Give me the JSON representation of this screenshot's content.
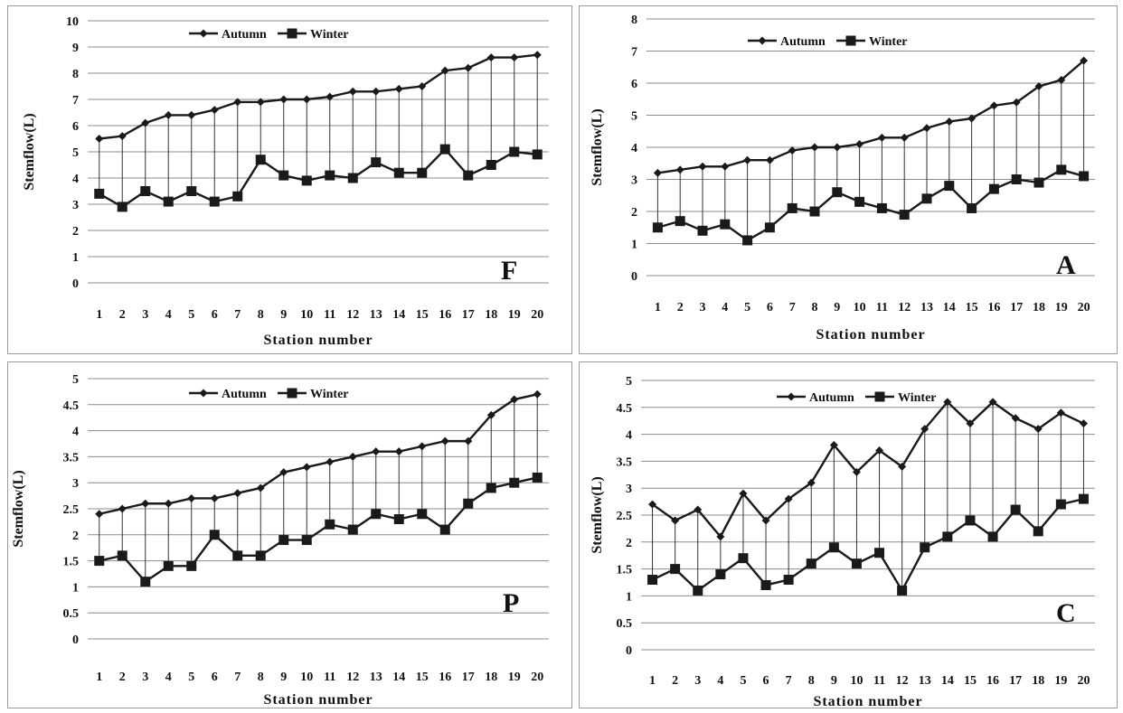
{
  "chart_data": [
    {
      "type": "line",
      "panel_letter": "F",
      "xlabel": "Station number",
      "ylabel": "Stemflow(L)",
      "categories": [
        1,
        2,
        3,
        4,
        5,
        6,
        7,
        8,
        9,
        10,
        11,
        12,
        13,
        14,
        15,
        16,
        17,
        18,
        19,
        20
      ],
      "ylim": [
        0,
        10
      ],
      "yticks": [
        0,
        1,
        2,
        3,
        4,
        5,
        6,
        7,
        8,
        9,
        10
      ],
      "series": [
        {
          "name": "Autumn",
          "marker": "diamond",
          "values": [
            5.5,
            5.6,
            6.1,
            6.4,
            6.4,
            6.6,
            6.9,
            6.9,
            7.0,
            7.0,
            7.1,
            7.3,
            7.3,
            7.4,
            7.5,
            8.1,
            8.2,
            8.6,
            8.6,
            8.7
          ]
        },
        {
          "name": "Winter",
          "marker": "square",
          "values": [
            3.4,
            2.9,
            3.5,
            3.1,
            3.5,
            3.1,
            3.3,
            4.7,
            4.1,
            3.9,
            4.1,
            4.0,
            4.6,
            4.2,
            4.2,
            5.1,
            4.1,
            4.5,
            5.0,
            4.9
          ]
        }
      ],
      "grid": true,
      "legend": "top-center"
    },
    {
      "type": "line",
      "panel_letter": "A",
      "xlabel": "Station number",
      "ylabel": "Stemflow(L)",
      "categories": [
        1,
        2,
        3,
        4,
        5,
        6,
        7,
        8,
        9,
        10,
        11,
        12,
        13,
        14,
        15,
        16,
        17,
        18,
        19,
        20
      ],
      "ylim": [
        0,
        8
      ],
      "yticks": [
        0,
        1,
        2,
        3,
        4,
        5,
        6,
        7,
        8
      ],
      "series": [
        {
          "name": "Autumn",
          "marker": "diamond",
          "values": [
            3.2,
            3.3,
            3.4,
            3.4,
            3.6,
            3.6,
            3.9,
            4.0,
            4.0,
            4.1,
            4.3,
            4.3,
            4.6,
            4.8,
            4.9,
            5.3,
            5.4,
            5.9,
            6.1,
            6.7
          ]
        },
        {
          "name": "Winter",
          "marker": "square",
          "values": [
            1.5,
            1.7,
            1.4,
            1.6,
            1.1,
            1.5,
            2.1,
            2.0,
            2.6,
            2.3,
            2.1,
            1.9,
            2.4,
            2.8,
            2.1,
            2.7,
            3.0,
            2.9,
            3.3,
            3.1
          ]
        }
      ],
      "grid": true,
      "legend": "top-center"
    },
    {
      "type": "line",
      "panel_letter": "P",
      "xlabel": "Station number",
      "ylabel": "Stemflow(L)",
      "categories": [
        1,
        2,
        3,
        4,
        5,
        6,
        7,
        8,
        9,
        10,
        11,
        12,
        13,
        14,
        15,
        16,
        17,
        18,
        19,
        20
      ],
      "ylim": [
        0,
        5
      ],
      "yticks": [
        0,
        0.5,
        1,
        1.5,
        2,
        2.5,
        3,
        3.5,
        4,
        4.5,
        5
      ],
      "series": [
        {
          "name": "Autumn",
          "marker": "diamond",
          "values": [
            2.4,
            2.5,
            2.6,
            2.6,
            2.7,
            2.7,
            2.8,
            2.9,
            3.2,
            3.3,
            3.4,
            3.5,
            3.6,
            3.6,
            3.7,
            3.8,
            3.8,
            4.3,
            4.6,
            4.7
          ]
        },
        {
          "name": "Winter",
          "marker": "square",
          "values": [
            1.5,
            1.6,
            1.1,
            1.4,
            1.4,
            2.0,
            1.6,
            1.6,
            1.9,
            1.9,
            2.2,
            2.1,
            2.4,
            2.3,
            2.4,
            2.1,
            2.6,
            2.9,
            3.0,
            3.1
          ]
        }
      ],
      "grid": true,
      "legend": "top-center"
    },
    {
      "type": "line",
      "panel_letter": "C",
      "xlabel": "Station number",
      "ylabel": "Stemflow(L)",
      "categories": [
        1,
        2,
        3,
        4,
        5,
        6,
        7,
        8,
        9,
        10,
        11,
        12,
        13,
        14,
        15,
        16,
        17,
        18,
        19,
        20
      ],
      "ylim": [
        0,
        5
      ],
      "yticks": [
        0,
        0.5,
        1,
        1.5,
        2,
        2.5,
        3,
        3.5,
        4,
        4.5,
        5
      ],
      "series": [
        {
          "name": "Autumn",
          "marker": "diamond",
          "values": [
            2.7,
            2.4,
            2.6,
            2.1,
            2.9,
            2.4,
            2.8,
            3.1,
            3.8,
            3.3,
            3.7,
            3.4,
            4.1,
            4.6,
            4.2,
            4.6,
            4.3,
            4.1,
            4.4,
            4.2
          ]
        },
        {
          "name": "Winter",
          "marker": "square",
          "values": [
            1.3,
            1.5,
            1.1,
            1.4,
            1.7,
            1.2,
            1.3,
            1.6,
            1.9,
            1.6,
            1.8,
            1.1,
            1.9,
            2.1,
            2.4,
            2.1,
            2.6,
            2.2,
            2.7,
            2.8
          ]
        }
      ],
      "grid": true,
      "legend": "top-center"
    }
  ]
}
